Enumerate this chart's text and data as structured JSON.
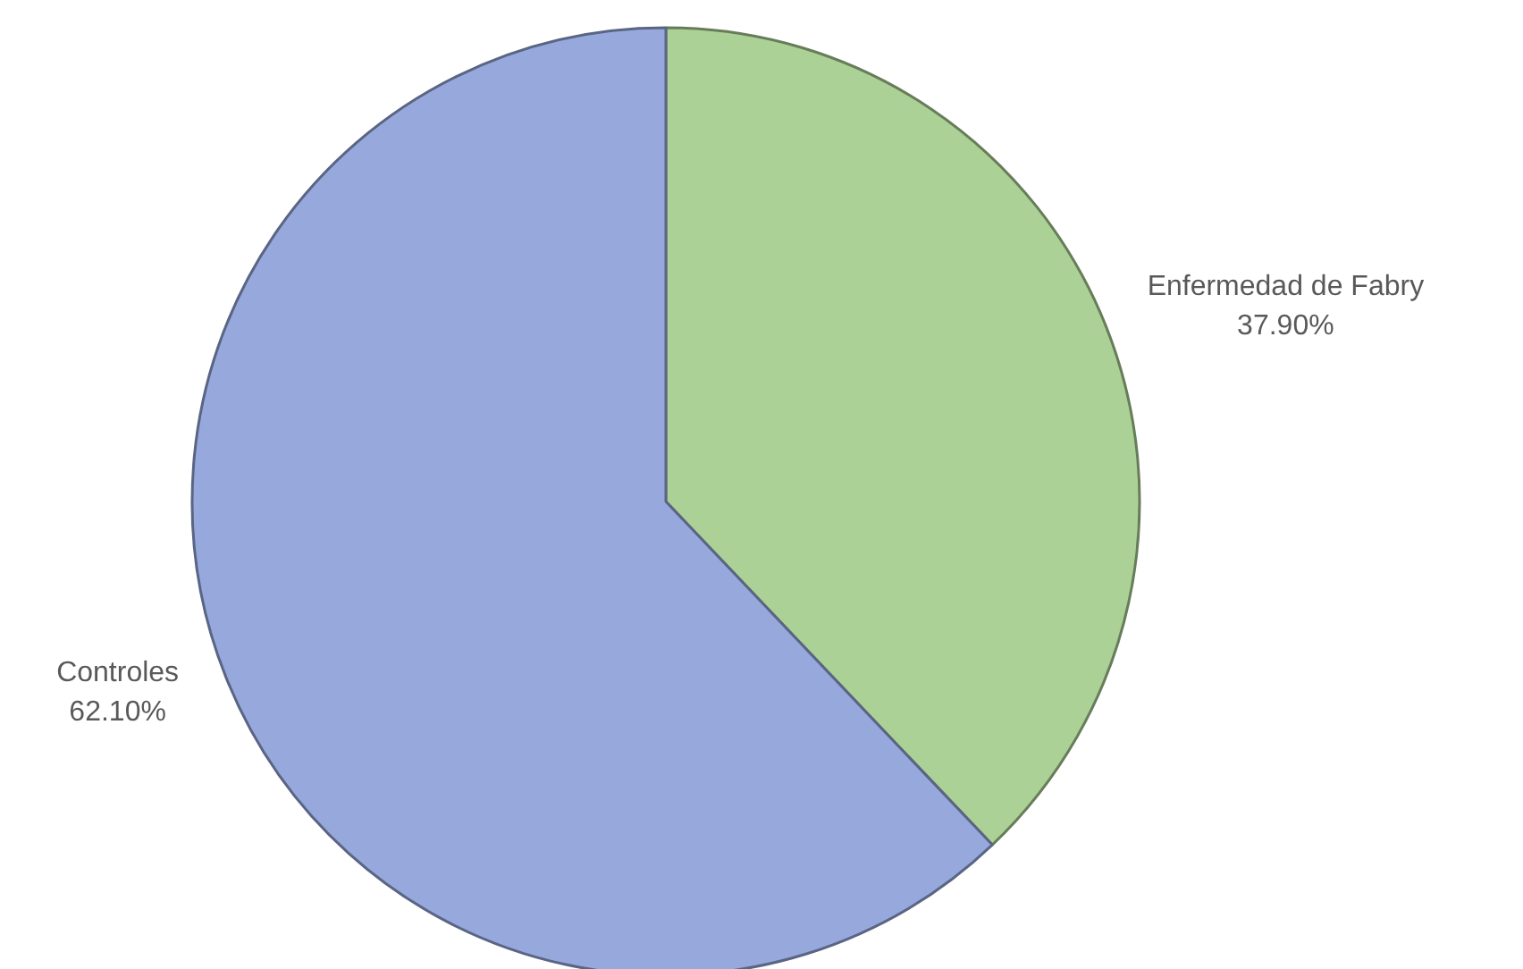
{
  "chart_data": {
    "type": "pie",
    "categories": [
      "Enfermedad de Fabry",
      "Controles"
    ],
    "values": [
      37.9,
      62.1
    ],
    "colors": [
      "#acd196",
      "#97a9dc"
    ],
    "value_labels": [
      "37.90%",
      "62.10%"
    ]
  }
}
